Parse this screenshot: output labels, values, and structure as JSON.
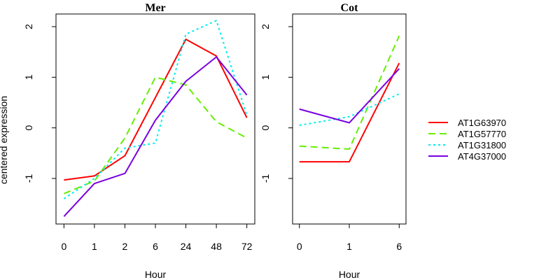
{
  "chart_data": {
    "type": "line",
    "ylabel": "centered expression",
    "legend_position": "right",
    "series_styles": [
      {
        "name": "AT1G63970",
        "color": "#ff0000",
        "dash": "solid"
      },
      {
        "name": "AT1G57770",
        "color": "#66ee00",
        "dash": "dashed"
      },
      {
        "name": "AT1G31800",
        "color": "#00eeee",
        "dash": "dotted"
      },
      {
        "name": "AT4G37000",
        "color": "#7a00e0",
        "dash": "solid"
      }
    ],
    "panels": [
      {
        "title": "Mer",
        "xlabel": "Hour",
        "categories": [
          "0",
          "1",
          "2",
          "6",
          "24",
          "48",
          "72"
        ],
        "yticks": [
          "-1",
          "0",
          "1",
          "2"
        ],
        "ylim": [
          -1.9,
          2.25
        ],
        "series": [
          {
            "name": "AT1G63970",
            "values": [
              -1.03,
              -0.95,
              -0.55,
              0.6,
              1.75,
              1.42,
              0.2
            ]
          },
          {
            "name": "AT1G57770",
            "values": [
              -1.3,
              -1.05,
              -0.2,
              1.0,
              0.85,
              0.12,
              -0.2
            ]
          },
          {
            "name": "AT1G31800",
            "values": [
              -1.4,
              -1.0,
              -0.4,
              -0.3,
              1.85,
              2.12,
              0.25
            ]
          },
          {
            "name": "AT4G37000",
            "values": [
              -1.75,
              -1.1,
              -0.9,
              0.15,
              0.92,
              1.4,
              0.65
            ]
          }
        ]
      },
      {
        "title": "Cot",
        "xlabel": "Hour",
        "categories": [
          "0",
          "1",
          "6"
        ],
        "yticks": [
          "-1",
          "0",
          "1",
          "2"
        ],
        "ylim": [
          -1.9,
          2.25
        ],
        "series": [
          {
            "name": "AT1G63970",
            "values": [
              -0.67,
              -0.67,
              1.28
            ]
          },
          {
            "name": "AT1G57770",
            "values": [
              -0.36,
              -0.42,
              1.82
            ]
          },
          {
            "name": "AT1G31800",
            "values": [
              0.05,
              0.22,
              0.67
            ]
          },
          {
            "name": "AT4G37000",
            "values": [
              0.37,
              0.1,
              1.17
            ]
          }
        ]
      }
    ]
  }
}
